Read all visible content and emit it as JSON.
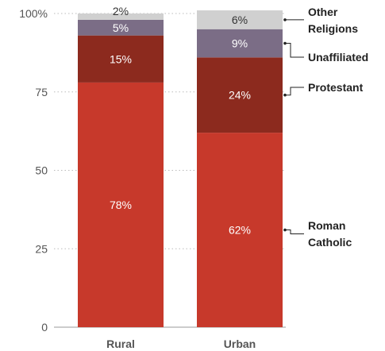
{
  "chart_data": {
    "type": "bar",
    "stacked": true,
    "orientation": "vertical",
    "categories": [
      "Rural",
      "Urban"
    ],
    "ylim": [
      0,
      100
    ],
    "yticks": [
      {
        "value": 0,
        "label": "0"
      },
      {
        "value": 25,
        "label": "25"
      },
      {
        "value": 50,
        "label": "50"
      },
      {
        "value": 75,
        "label": "75"
      },
      {
        "value": 100,
        "label": "100%"
      }
    ],
    "grid": true,
    "legend_position": "right",
    "series": [
      {
        "name": "Roman Catholic",
        "legend_lines": [
          "Roman",
          "Catholic"
        ],
        "values": [
          78,
          62
        ],
        "labels": [
          "78%",
          "62%"
        ],
        "color": "#c7392b",
        "label_color": "#ffffff"
      },
      {
        "name": "Protestant",
        "legend_lines": [
          "Protestant"
        ],
        "values": [
          15,
          24
        ],
        "labels": [
          "15%",
          "24%"
        ],
        "color": "#8c2a1e",
        "label_color": "#ffffff"
      },
      {
        "name": "Unaffiliated",
        "legend_lines": [
          "Unaffiliated"
        ],
        "values": [
          5,
          9
        ],
        "labels": [
          "5%",
          "9%"
        ],
        "color": "#7b6d86",
        "label_color": "#ffffff"
      },
      {
        "name": "Other Religions",
        "legend_lines": [
          "Other",
          "Religions"
        ],
        "values": [
          2,
          6
        ],
        "labels": [
          "2%",
          "6%"
        ],
        "color": "#d0d0d0",
        "label_color": "#333333"
      }
    ]
  }
}
